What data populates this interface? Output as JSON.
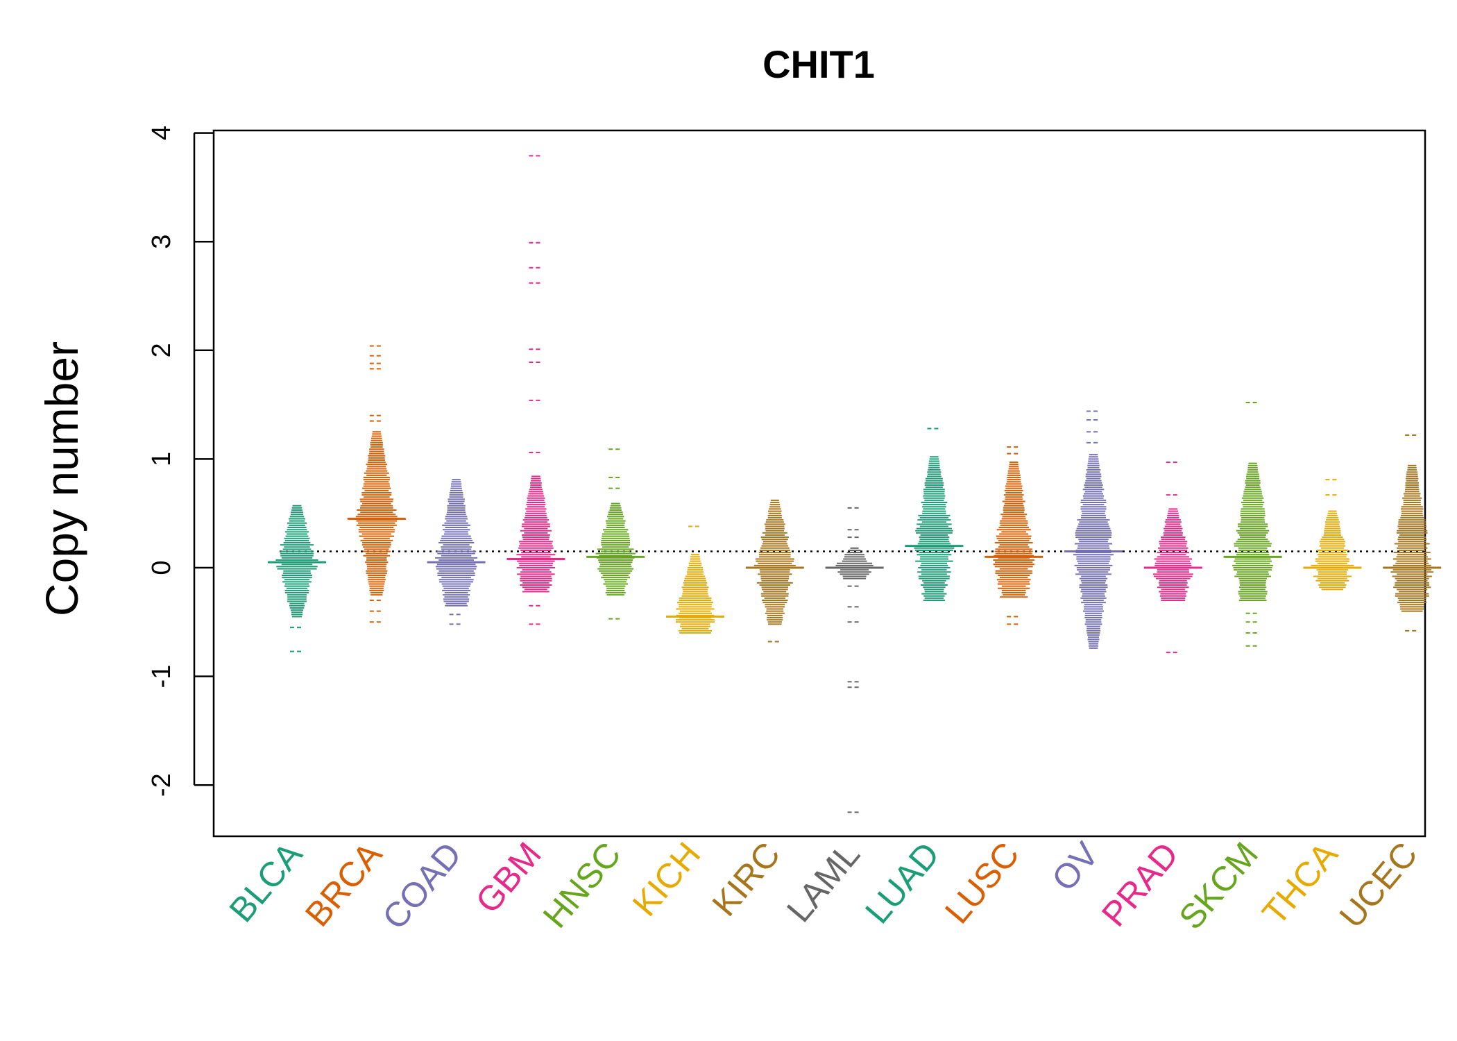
{
  "chart_data": {
    "type": "beeswarm",
    "title": "CHIT1",
    "ylabel": "Copy number",
    "xlabel": "",
    "ylim": [
      -2.45,
      4.05
    ],
    "yticks": [
      "-2",
      "-1",
      "0",
      "1",
      "2",
      "3",
      "4"
    ],
    "reference_line": 0.15,
    "grid": false,
    "categories": [
      {
        "name": "BLCA",
        "color": "#1b9e77",
        "median": 0.05,
        "dense": [
          -0.45,
          0.58
        ],
        "extra": [
          -0.77,
          -0.55
        ]
      },
      {
        "name": "BRCA",
        "color": "#d95f02",
        "median": 0.45,
        "dense": [
          -0.25,
          1.25
        ],
        "extra": [
          -0.5,
          -0.4,
          -0.3,
          1.4,
          1.35,
          1.83,
          1.88,
          1.95,
          2.04
        ]
      },
      {
        "name": "COAD",
        "color": "#7570b3",
        "median": 0.05,
        "dense": [
          -0.35,
          0.82
        ],
        "extra": [
          -0.52,
          -0.43
        ]
      },
      {
        "name": "GBM",
        "color": "#e7298a",
        "median": 0.08,
        "dense": [
          -0.22,
          0.85
        ],
        "extra": [
          -0.52,
          -0.35,
          1.06,
          1.54,
          1.89,
          2.01,
          2.62,
          2.76,
          2.99,
          3.79
        ]
      },
      {
        "name": "HNSC",
        "color": "#66a61e",
        "median": 0.1,
        "dense": [
          -0.25,
          0.6
        ],
        "extra": [
          -0.47,
          0.73,
          0.83,
          1.09
        ]
      },
      {
        "name": "KICH",
        "color": "#e6ab02",
        "median": -0.45,
        "dense": [
          -0.6,
          0.12
        ],
        "extra": [
          0.38
        ]
      },
      {
        "name": "KIRC",
        "color": "#a6761d",
        "median": 0.0,
        "dense": [
          -0.52,
          0.62
        ],
        "extra": [
          -0.68
        ]
      },
      {
        "name": "LAML",
        "color": "#666666",
        "median": 0.0,
        "dense": [
          -0.1,
          0.18
        ],
        "extra": [
          -2.25,
          -1.1,
          -1.05,
          -0.5,
          -0.36,
          -0.17,
          0.28,
          0.35,
          0.55
        ]
      },
      {
        "name": "LUAD",
        "color": "#1b9e77",
        "median": 0.2,
        "dense": [
          -0.3,
          1.03
        ],
        "extra": [
          1.28
        ]
      },
      {
        "name": "LUSC",
        "color": "#d95f02",
        "median": 0.1,
        "dense": [
          -0.27,
          0.98
        ],
        "extra": [
          -0.52,
          -0.45,
          1.05,
          1.11
        ]
      },
      {
        "name": "OV",
        "color": "#7570b3",
        "median": 0.15,
        "dense": [
          -0.74,
          1.05
        ],
        "extra": [
          1.15,
          1.25,
          1.36,
          1.44
        ]
      },
      {
        "name": "PRAD",
        "color": "#e7298a",
        "median": 0.0,
        "dense": [
          -0.3,
          0.55
        ],
        "extra": [
          -0.78,
          0.67,
          0.97
        ]
      },
      {
        "name": "SKCM",
        "color": "#66a61e",
        "median": 0.1,
        "dense": [
          -0.3,
          0.97
        ],
        "extra": [
          -0.72,
          -0.6,
          -0.5,
          -0.42,
          1.52
        ]
      },
      {
        "name": "THCA",
        "color": "#e6ab02",
        "median": 0.0,
        "dense": [
          -0.2,
          0.52
        ],
        "extra": [
          0.67,
          0.81
        ]
      },
      {
        "name": "UCEC",
        "color": "#a6761d",
        "median": 0.0,
        "dense": [
          -0.4,
          0.95
        ],
        "extra": [
          -0.58,
          1.22
        ]
      }
    ]
  }
}
